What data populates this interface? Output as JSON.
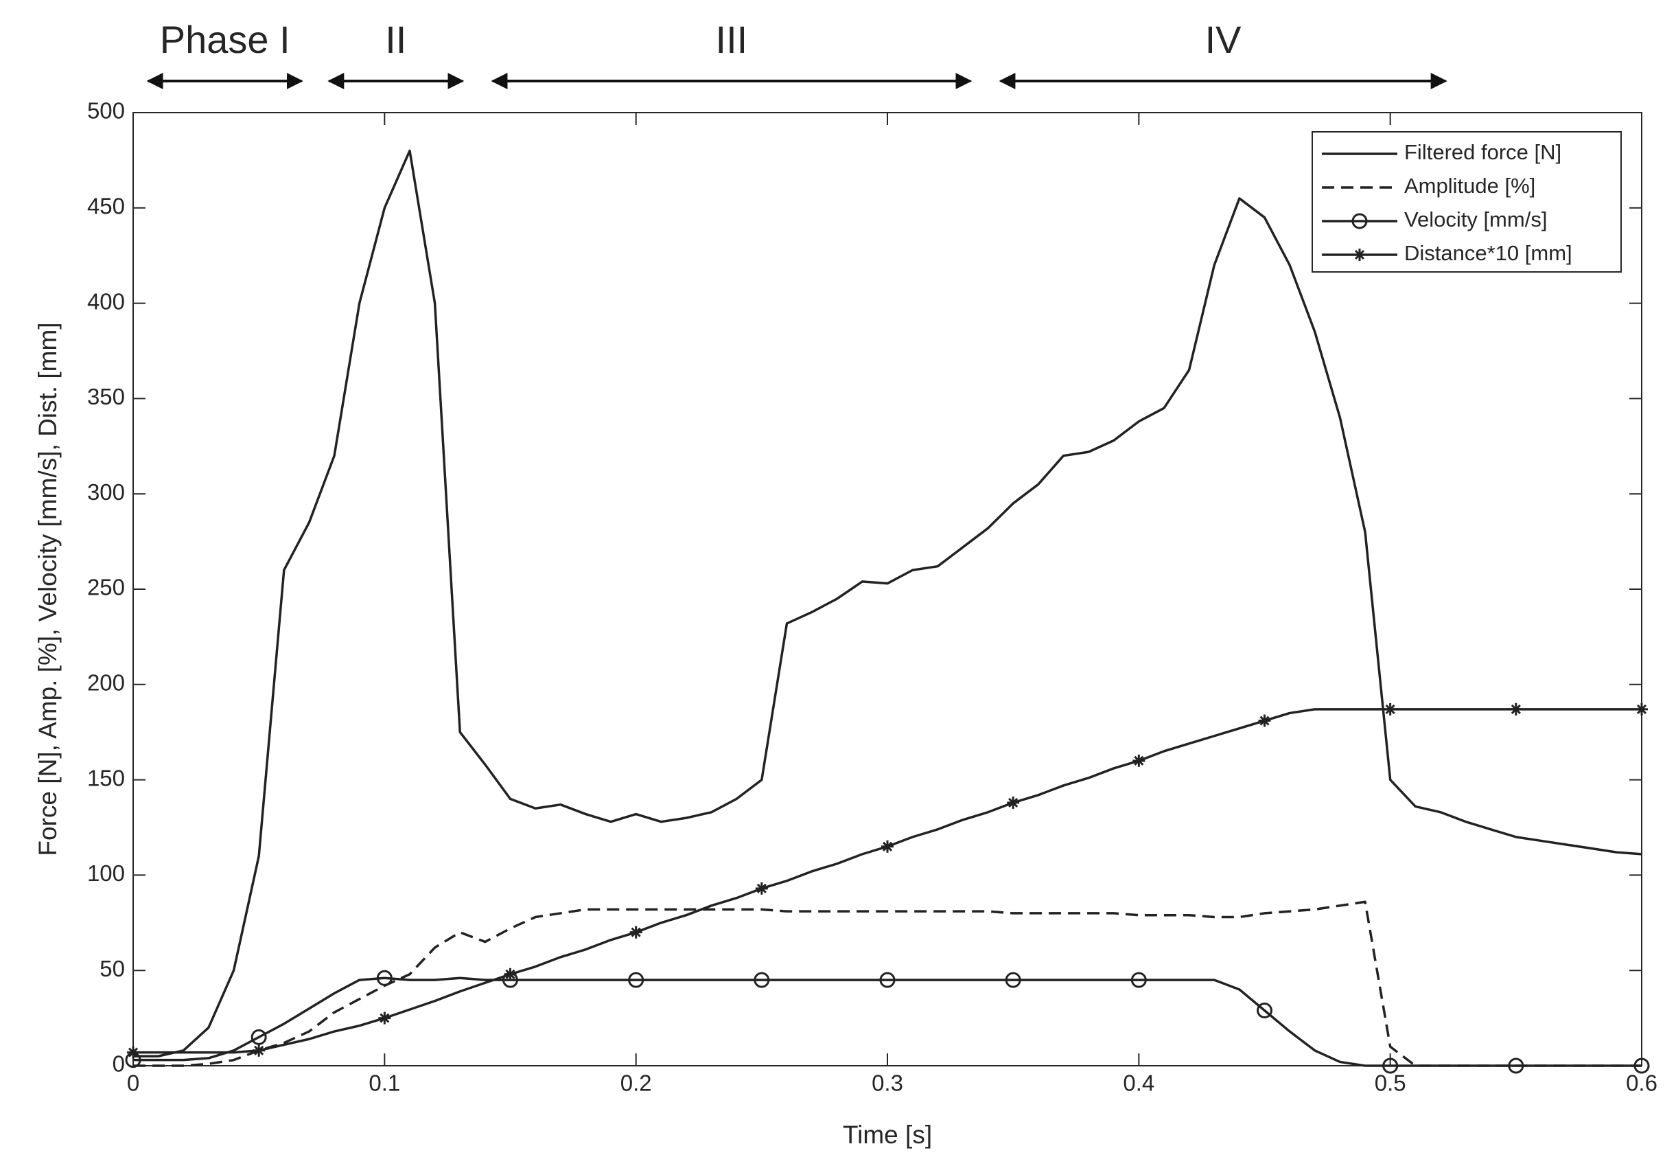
{
  "chart_data": {
    "type": "line",
    "xlabel": "Time [s]",
    "ylabel": "Force [N], Amp. [%], Velocity [mm/s], Dist. [mm]",
    "x": [
      0,
      0.01,
      0.02,
      0.03,
      0.04,
      0.05,
      0.06,
      0.07,
      0.08,
      0.09,
      0.1,
      0.11,
      0.12,
      0.13,
      0.14,
      0.15,
      0.16,
      0.17,
      0.18,
      0.19,
      0.2,
      0.21,
      0.22,
      0.23,
      0.24,
      0.25,
      0.26,
      0.27,
      0.28,
      0.29,
      0.3,
      0.31,
      0.32,
      0.33,
      0.34,
      0.35,
      0.36,
      0.37,
      0.38,
      0.39,
      0.4,
      0.41,
      0.42,
      0.43,
      0.44,
      0.45,
      0.46,
      0.47,
      0.48,
      0.49,
      0.5,
      0.51,
      0.52,
      0.53,
      0.54,
      0.55,
      0.56,
      0.57,
      0.58,
      0.59,
      0.6
    ],
    "series": [
      {
        "name": "Filtered force [N]",
        "color": "#222222",
        "dash": false,
        "marker": null,
        "values": [
          5,
          5,
          8,
          20,
          50,
          110,
          260,
          285,
          320,
          400,
          450,
          480,
          400,
          175,
          158,
          140,
          135,
          137,
          132,
          128,
          132,
          128,
          130,
          133,
          140,
          150,
          232,
          238,
          245,
          254,
          253,
          260,
          262,
          272,
          282,
          295,
          305,
          320,
          322,
          328,
          338,
          345,
          365,
          420,
          455,
          445,
          420,
          385,
          340,
          280,
          150,
          136,
          133,
          128,
          124,
          120,
          118,
          116,
          114,
          112,
          111
        ]
      },
      {
        "name": "Amplitude [%]",
        "color": "#222222",
        "dash": true,
        "marker": null,
        "values": [
          0,
          0,
          0,
          1,
          3,
          8,
          12,
          18,
          28,
          35,
          42,
          48,
          62,
          70,
          65,
          72,
          78,
          80,
          82,
          82,
          82,
          82,
          82,
          82,
          82,
          82,
          81,
          81,
          81,
          81,
          81,
          81,
          81,
          81,
          81,
          80,
          80,
          80,
          80,
          80,
          79,
          79,
          79,
          78,
          78,
          80,
          81,
          82,
          84,
          86,
          10,
          0,
          0,
          0,
          0,
          0,
          0,
          0,
          0,
          0,
          0
        ]
      },
      {
        "name": "Velocity [mm/s]",
        "color": "#222222",
        "dash": false,
        "marker": "circle",
        "values": [
          3,
          3,
          3,
          4,
          8,
          15,
          22,
          30,
          38,
          45,
          46,
          45,
          45,
          46,
          45,
          45,
          45,
          45,
          45,
          45,
          45,
          45,
          45,
          45,
          45,
          45,
          45,
          45,
          45,
          45,
          45,
          45,
          45,
          45,
          45,
          45,
          45,
          45,
          45,
          45,
          45,
          45,
          45,
          45,
          40,
          29,
          18,
          8,
          2,
          0,
          0,
          0,
          0,
          0,
          0,
          0,
          0,
          0,
          0,
          0,
          0
        ]
      },
      {
        "name": "Distance*10 [mm]",
        "color": "#222222",
        "dash": false,
        "marker": "asterisk",
        "values": [
          7,
          7,
          7,
          7,
          7,
          8,
          11,
          14,
          18,
          21,
          25,
          29.5,
          34,
          39,
          43.5,
          48,
          52,
          57,
          61,
          66,
          70,
          75,
          79,
          84,
          88,
          93,
          97,
          102,
          106,
          111,
          115,
          120,
          124,
          129,
          133,
          138,
          142,
          147,
          151,
          156,
          160,
          165,
          169,
          173,
          177,
          181,
          185,
          187,
          187,
          187,
          187,
          187,
          187,
          187,
          187,
          187,
          187,
          187,
          187,
          187,
          187
        ]
      }
    ],
    "xlim": [
      0,
      0.6
    ],
    "xticks": [
      0,
      0.1,
      0.2,
      0.3,
      0.4,
      0.5,
      0.6
    ],
    "ylim": [
      0,
      500
    ],
    "yticks": [
      0,
      50,
      100,
      150,
      200,
      250,
      300,
      350,
      400,
      450,
      500
    ],
    "legend": "upper right",
    "annotations": [
      {
        "text": "Phase I",
        "x": [
          0.006,
          0.067
        ]
      },
      {
        "text": "II",
        "x": [
          0.078,
          0.131
        ]
      },
      {
        "text": "III",
        "x": [
          0.143,
          0.333
        ]
      },
      {
        "text": "IV",
        "x": [
          0.345,
          0.522
        ]
      }
    ]
  }
}
